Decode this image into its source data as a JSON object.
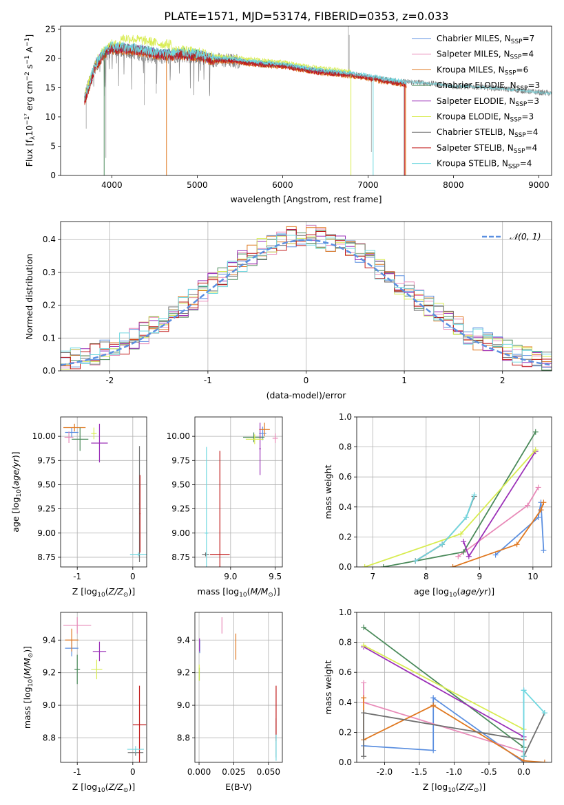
{
  "title": "PLATE=1571, MJD=53174, FIBERID=0353, z=0.033",
  "colors": {
    "cha_miles": "#5b8fe0",
    "sal_miles": "#e88ab8",
    "kro_miles": "#e07820",
    "cha_elodie": "#4a8a5a",
    "sal_elodie": "#9b30b8",
    "kro_elodie": "#d8ec50",
    "cha_stelib": "#707070",
    "sal_stelib": "#c01818",
    "kro_stelib": "#70d8e0",
    "gauss": "#5b8fe0"
  },
  "chart_data": [
    {
      "type": "line",
      "id": "spectrum",
      "xlabel": "wavelength [Angstrom, rest frame]",
      "ylabel": "Flux [f_λ10⁻¹⁷ erg cm⁻² s⁻¹ A⁻¹]",
      "xlim": [
        3400,
        9150
      ],
      "ylim": [
        0,
        25.5
      ],
      "xticks": [
        4000,
        5000,
        6000,
        7000,
        8000,
        9000
      ],
      "yticks": [
        0,
        5,
        10,
        15,
        20,
        25
      ],
      "legend_position": "top-right",
      "legend": [
        "Chabrier MILES, N_SSP=7",
        "Salpeter MILES, N_SSP=4",
        "Kroupa MILES, N_SSP=6",
        "Chabrier ELODIE, N_SSP=3",
        "Salpeter ELODIE, N_SSP=3",
        "Kroupa ELODIE, N_SSP=3",
        "Chabrier STELIB, N_SSP=4",
        "Salpeter STELIB, N_SSP=4",
        "Kroupa STELIB, N_SSP=4"
      ],
      "data_series": {
        "name": "data",
        "x": [
          3680,
          3800,
          3900,
          4000,
          4200,
          4400,
          4600,
          4800,
          5000,
          5200,
          5400,
          5600,
          5800,
          6000,
          6200,
          6400,
          6600,
          6800,
          7000,
          7200,
          7400,
          7600,
          7800,
          8000,
          8200,
          8400,
          8600,
          8800,
          9000,
          9150
        ],
        "y": [
          13.5,
          18.5,
          20.5,
          21.5,
          21.3,
          20.5,
          20.2,
          20.6,
          20.3,
          19.7,
          19.6,
          19.2,
          18.9,
          18.8,
          18.3,
          17.8,
          17.5,
          17.3,
          16.8,
          16.4,
          16.0,
          15.9,
          15.6,
          15.2,
          15.2,
          15.0,
          14.8,
          14.5,
          14.2,
          14.0
        ]
      },
      "model_series": {
        "x": [
          3680,
          3800,
          3900,
          4000,
          4200,
          4400,
          4600,
          4800,
          5000,
          5200,
          5400,
          5600,
          5800,
          6000,
          6200,
          6400,
          6600,
          6800,
          7000,
          7200,
          7400,
          7450
        ],
        "y": [
          12.8,
          18.5,
          20.8,
          21.8,
          21.6,
          21.2,
          20.6,
          20.8,
          20.5,
          19.8,
          19.7,
          19.3,
          19.0,
          18.8,
          18.3,
          17.8,
          17.5,
          17.2,
          16.8,
          16.2,
          15.8,
          15.5
        ]
      }
    },
    {
      "type": "histogram",
      "id": "residuals",
      "xlabel": "(data-model)/error",
      "ylabel": "Normed distribution",
      "xlim": [
        -2.5,
        2.5
      ],
      "ylim": [
        0,
        0.455
      ],
      "xticks": [
        -2,
        -1,
        0,
        1,
        2
      ],
      "yticks": [
        0.0,
        0.1,
        0.2,
        0.3,
        0.4
      ],
      "legend": "𝒩(0, 1)",
      "legend_position": "top-right",
      "bin_width": 0.1
    },
    {
      "type": "scatter",
      "id": "age_vs_Z",
      "xlabel": "Z [log₁₀(Z/Z⊙)]",
      "ylabel": "age  [log₁₀(age/yr)]",
      "xlim": [
        -1.3,
        0.25
      ],
      "ylim": [
        8.65,
        10.2
      ],
      "xticks": [
        -1,
        0
      ],
      "yticks": [
        8.75,
        9.0,
        9.25,
        9.5,
        9.75,
        10.0
      ],
      "points": [
        {
          "s": "cha_miles",
          "x": -1.1,
          "y": 10.04,
          "xe": 0.12,
          "ye": 0.05
        },
        {
          "s": "sal_miles",
          "x": -1.15,
          "y": 9.99,
          "xe": 0.08,
          "ye": 0.06
        },
        {
          "s": "kro_miles",
          "x": -1.05,
          "y": 10.09,
          "xe": 0.2,
          "ye": 0.04
        },
        {
          "s": "cha_elodie",
          "x": -0.95,
          "y": 9.97,
          "xe": 0.15,
          "ye": 0.12
        },
        {
          "s": "sal_elodie",
          "x": -0.6,
          "y": 9.93,
          "xe": 0.15,
          "ye": 0.2
        },
        {
          "s": "kro_elodie",
          "x": -0.7,
          "y": 10.03,
          "xe": 0.05,
          "ye": 0.06
        },
        {
          "s": "cha_stelib",
          "x": 0.12,
          "y": 9.3,
          "xe": 0.01,
          "ye": 0.6
        },
        {
          "s": "sal_stelib",
          "x": 0.13,
          "y": 9.2,
          "xe": 0.01,
          "ye": 0.4
        },
        {
          "s": "kro_stelib",
          "x": 0.1,
          "y": 8.78,
          "xe": 0.15,
          "ye": 0.02
        }
      ]
    },
    {
      "type": "scatter",
      "id": "age_vs_mass",
      "xlabel": "mass [log₁₀(M/M⊙)]",
      "xlim": [
        8.6,
        9.58
      ],
      "ylim": [
        8.65,
        10.2
      ],
      "xticks": [
        8.5,
        9.0,
        9.5
      ],
      "yticks": [
        8.75,
        9.0,
        9.25,
        9.5,
        9.75,
        10.0
      ],
      "points": [
        {
          "s": "cha_miles",
          "x": 9.36,
          "y": 10.03,
          "xe": 0.04,
          "ye": 0.07
        },
        {
          "s": "sal_miles",
          "x": 9.5,
          "y": 9.98,
          "xe": 0.03,
          "ye": 0.05
        },
        {
          "s": "kro_miles",
          "x": 9.38,
          "y": 10.07,
          "xe": 0.06,
          "ye": 0.07
        },
        {
          "s": "cha_elodie",
          "x": 9.26,
          "y": 9.99,
          "xe": 0.12,
          "ye": 0.05
        },
        {
          "s": "sal_elodie",
          "x": 9.33,
          "y": 9.87,
          "xe": 0.01,
          "ye": 0.27
        },
        {
          "s": "kro_elodie",
          "x": 9.27,
          "y": 9.97,
          "xe": 0.1,
          "ye": 0.05
        },
        {
          "s": "cha_stelib",
          "x": 8.72,
          "y": 8.78,
          "xe": 0.04,
          "ye": 0.02
        },
        {
          "s": "sal_stelib",
          "x": 8.88,
          "y": 8.78,
          "xe": 0.11,
          "ye": 1.07
        },
        {
          "s": "kro_stelib",
          "x": 8.73,
          "y": 9.0,
          "xe": 0.02,
          "ye": 0.89
        }
      ]
    },
    {
      "type": "line",
      "id": "massweight_vs_age",
      "xlabel": "age  [log₁₀(age/yr)]",
      "ylabel": "mass weight",
      "xlim": [
        6.7,
        10.35
      ],
      "ylim": [
        0,
        1
      ],
      "xticks": [
        7,
        8,
        9,
        10
      ],
      "yticks": [
        0.0,
        0.2,
        0.4,
        0.6,
        0.8,
        1.0
      ],
      "series": [
        {
          "s": "cha_miles",
          "x": [
            9.3,
            10.1,
            10.15,
            10.2
          ],
          "y": [
            0.08,
            0.33,
            0.43,
            0.11
          ]
        },
        {
          "s": "sal_miles",
          "x": [
            8.6,
            9.9,
            10.1
          ],
          "y": [
            0.07,
            0.41,
            0.53
          ]
        },
        {
          "s": "kro_miles",
          "x": [
            8.5,
            9.7,
            10.15,
            10.2
          ],
          "y": [
            0.0,
            0.15,
            0.38,
            0.43
          ]
        },
        {
          "s": "cha_elodie",
          "x": [
            7.2,
            8.7,
            10.05
          ],
          "y": [
            0.0,
            0.1,
            0.9
          ]
        },
        {
          "s": "sal_elodie",
          "x": [
            8.7,
            8.8,
            10.05
          ],
          "y": [
            0.17,
            0.07,
            0.77
          ]
        },
        {
          "s": "kro_elodie",
          "x": [
            6.85,
            8.65,
            10.05
          ],
          "y": [
            0.0,
            0.22,
            0.78
          ]
        },
        {
          "s": "cha_stelib",
          "x": [
            7.8,
            8.3,
            8.75,
            8.9
          ],
          "y": [
            0.04,
            0.15,
            0.33,
            0.47
          ]
        },
        {
          "s": "sal_stelib",
          "x": [
            7.8,
            8.3
          ],
          "y": [
            0.04,
            0.15
          ]
        },
        {
          "s": "kro_stelib",
          "x": [
            7.8,
            8.3,
            8.75,
            8.9
          ],
          "y": [
            0.04,
            0.15,
            0.33,
            0.48
          ]
        }
      ]
    },
    {
      "type": "scatter",
      "id": "mass_vs_Z",
      "xlabel": "Z [log₁₀(Z/Z⊙)]",
      "ylabel": "mass [log₁₀(M/M⊙)]",
      "xlim": [
        -1.3,
        0.25
      ],
      "ylim": [
        8.65,
        9.57
      ],
      "xticks": [
        -1,
        0
      ],
      "yticks": [
        8.8,
        9.0,
        9.2,
        9.4
      ],
      "points": [
        {
          "s": "cha_miles",
          "x": -1.1,
          "y": 9.35,
          "xe": 0.12,
          "ye": 0.05
        },
        {
          "s": "sal_miles",
          "x": -1.0,
          "y": 9.49,
          "xe": 0.25,
          "ye": 0.05
        },
        {
          "s": "kro_miles",
          "x": -1.1,
          "y": 9.4,
          "xe": 0.12,
          "ye": 0.07
        },
        {
          "s": "cha_elodie",
          "x": -1.0,
          "y": 9.22,
          "xe": 0.05,
          "ye": 0.09
        },
        {
          "s": "sal_elodie",
          "x": -0.6,
          "y": 9.33,
          "xe": 0.12,
          "ye": 0.06
        },
        {
          "s": "kro_elodie",
          "x": -0.65,
          "y": 9.22,
          "xe": 0.1,
          "ye": 0.06
        },
        {
          "s": "cha_stelib",
          "x": 0.05,
          "y": 8.71,
          "xe": 0.14,
          "ye": 0.02
        },
        {
          "s": "sal_stelib",
          "x": 0.12,
          "y": 8.88,
          "xe": 0.12,
          "ye": 0.24
        },
        {
          "s": "kro_stelib",
          "x": 0.05,
          "y": 8.73,
          "xe": 0.15,
          "ye": 0.02
        }
      ]
    },
    {
      "type": "scatter",
      "id": "mass_vs_EBV",
      "xlabel": "E(B-V)",
      "xlim": [
        -0.003,
        0.06
      ],
      "ylim": [
        8.65,
        9.57
      ],
      "xticks": [
        0.0,
        0.025,
        0.05
      ],
      "xticklabels": [
        "0.000",
        "0.025",
        "0.050"
      ],
      "yticks": [
        8.8,
        9.0,
        9.2,
        9.4
      ],
      "points": [
        {
          "s": "cha_miles",
          "x": 0.0005,
          "y": 9.36,
          "xe": 0,
          "ye": 0.04
        },
        {
          "s": "sal_miles",
          "x": 0.0165,
          "y": 9.49,
          "xe": 0,
          "ye": 0.05
        },
        {
          "s": "kro_miles",
          "x": 0.0265,
          "y": 9.36,
          "xe": 0,
          "ye": 0.08
        },
        {
          "s": "cha_elodie",
          "x": 0.0002,
          "y": 9.19,
          "xe": 0,
          "ye": 0.04
        },
        {
          "s": "sal_elodie",
          "x": 0.0003,
          "y": 9.37,
          "xe": 0,
          "ye": 0.04
        },
        {
          "s": "kro_elodie",
          "x": 0.0001,
          "y": 9.2,
          "xe": 0,
          "ye": 0.05
        },
        {
          "s": "cha_stelib",
          "x": 0.0555,
          "y": 8.8,
          "xe": 0,
          "ye": 0.12
        },
        {
          "s": "sal_stelib",
          "x": 0.0555,
          "y": 8.95,
          "xe": 0,
          "ye": 0.17
        },
        {
          "s": "kro_stelib",
          "x": 0.0555,
          "y": 8.74,
          "xe": 0,
          "ye": 0.08
        }
      ]
    },
    {
      "type": "line",
      "id": "massweight_vs_Z",
      "xlabel": "Z [log₁₀(Z/Z⊙)]",
      "ylabel": "mass weight",
      "xlim": [
        -2.4,
        0.4
      ],
      "ylim": [
        0,
        1
      ],
      "xticks": [
        -2.0,
        -1.5,
        -1.0,
        -0.5,
        0.0
      ],
      "yticks": [
        0.0,
        0.2,
        0.4,
        0.6,
        0.8,
        1.0
      ],
      "series": [
        {
          "s": "cha_miles",
          "x": [
            -2.3,
            -1.3,
            -1.3,
            0.0,
            0.0
          ],
          "y": [
            0.11,
            0.08,
            0.43,
            0.0,
            0.48
          ]
        },
        {
          "s": "sal_miles",
          "x": [
            -2.3,
            -2.3,
            0.0
          ],
          "y": [
            0.53,
            0.4,
            0.07
          ]
        },
        {
          "s": "kro_miles",
          "x": [
            -2.3,
            -2.3,
            -1.3,
            0.0,
            0.3
          ],
          "y": [
            0.43,
            0.15,
            0.38,
            0.01,
            0.0
          ]
        },
        {
          "s": "cha_elodie",
          "x": [
            -2.3,
            0.0
          ],
          "y": [
            0.9,
            0.1
          ]
        },
        {
          "s": "sal_elodie",
          "x": [
            -2.3,
            0.0
          ],
          "y": [
            0.77,
            0.17
          ]
        },
        {
          "s": "kro_elodie",
          "x": [
            -2.3,
            0.0
          ],
          "y": [
            0.78,
            0.22
          ]
        },
        {
          "s": "cha_stelib",
          "x": [
            -2.3,
            -2.3,
            0.0,
            0.0,
            0.3
          ],
          "y": [
            0.04,
            0.33,
            0.15,
            0.04,
            0.33
          ]
        },
        {
          "s": "sal_stelib",
          "x": [
            0.0,
            0.0
          ],
          "y": [
            0.04,
            0.15
          ]
        },
        {
          "s": "kro_stelib",
          "x": [
            0.0,
            0.0,
            0.3
          ],
          "y": [
            0.04,
            0.48,
            0.33
          ]
        }
      ]
    }
  ]
}
